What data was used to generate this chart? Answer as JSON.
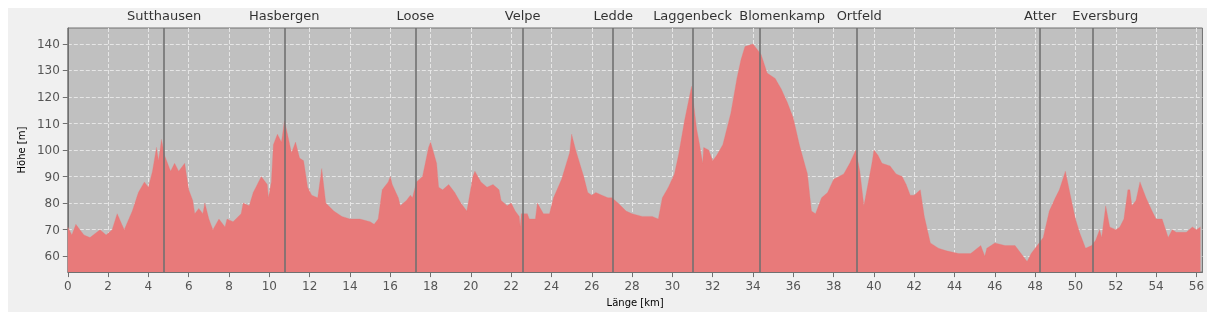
{
  "chart_data": {
    "type": "area",
    "xlabel": "Länge [km]",
    "ylabel": "Höhe [m]",
    "x": [
      0,
      0.2,
      0.4,
      0.6,
      0.8,
      1.1,
      1.6,
      1.9,
      2.2,
      2.45,
      2.8,
      3.2,
      3.5,
      3.8,
      4.0,
      4.2,
      4.4,
      4.5,
      4.65,
      4.8,
      5.1,
      5.3,
      5.5,
      5.8,
      6.0,
      6.2,
      6.3,
      6.5,
      6.7,
      6.8,
      7.0,
      7.2,
      7.5,
      7.8,
      7.9,
      8.2,
      8.6,
      8.7,
      9.0,
      9.2,
      9.6,
      9.9,
      9.95,
      10.1,
      10.2,
      10.4,
      10.6,
      10.75,
      10.9,
      11.1,
      11.3,
      11.5,
      11.7,
      11.9,
      12.1,
      12.4,
      12.6,
      12.8,
      13.2,
      13.6,
      14.0,
      14.5,
      15.0,
      15.2,
      15.4,
      15.6,
      15.9,
      16.0,
      16.1,
      16.4,
      16.5,
      16.8,
      17.0,
      17.1,
      17.3,
      17.6,
      17.9,
      18.0,
      18.3,
      18.4,
      18.6,
      18.9,
      19.2,
      19.5,
      19.8,
      20.1,
      20.2,
      20.5,
      20.8,
      21.1,
      21.4,
      21.5,
      21.8,
      22.0,
      22.2,
      22.4,
      22.45,
      22.5,
      22.8,
      22.9,
      23.2,
      23.3,
      23.6,
      23.9,
      24.1,
      24.5,
      24.9,
      25.0,
      25.2,
      25.6,
      25.8,
      26.0,
      26.2,
      26.5,
      26.8,
      27.0,
      27.3,
      27.7,
      28.0,
      28.5,
      29.0,
      29.3,
      29.5,
      29.8,
      30.1,
      30.3,
      30.6,
      30.95,
      31.2,
      31.35,
      31.5,
      31.55,
      31.8,
      32.0,
      32.2,
      32.5,
      32.9,
      33.2,
      33.4,
      33.6,
      34.0,
      34.4,
      34.7,
      35.1,
      35.4,
      35.7,
      36.0,
      36.3,
      36.7,
      36.9,
      37.1,
      37.4,
      37.7,
      38.0,
      38.5,
      38.8,
      39.1,
      39.3,
      39.5,
      39.9,
      40.0,
      40.2,
      40.4,
      40.8,
      41.1,
      41.4,
      41.6,
      41.8,
      42.0,
      42.3,
      42.5,
      42.8,
      43.2,
      43.6,
      44.2,
      44.8,
      45.3,
      45.5,
      45.6,
      46.0,
      46.5,
      47.0,
      47.3,
      47.6,
      47.8,
      48.1,
      48.4,
      48.7,
      49.0,
      49.2,
      49.5,
      49.8,
      50.0,
      50.2,
      50.5,
      50.8,
      51.0,
      51.2,
      51.3,
      51.5,
      51.7,
      52.0,
      52.2,
      52.4,
      52.6,
      52.7,
      52.8,
      53.0,
      53.2,
      53.5,
      53.8,
      54.0,
      54.3,
      54.6,
      54.8,
      55.0,
      55.5,
      55.8,
      56.0,
      56.2
    ],
    "series": [
      {
        "color": "#e87a7a",
        "values": [
          71,
          68,
          72,
          70,
          68,
          67,
          70,
          68,
          70,
          76,
          70,
          77,
          84,
          88,
          86,
          92,
          101,
          96,
          104,
          98,
          92,
          95,
          92,
          95,
          85,
          81,
          76,
          78,
          76,
          80,
          74,
          70,
          74,
          71,
          74,
          73,
          76,
          80,
          79,
          84,
          90,
          87,
          82,
          88,
          102,
          106,
          103,
          111,
          106,
          99,
          103,
          97,
          96,
          86,
          83,
          82,
          93,
          80,
          77,
          75,
          74,
          74,
          73,
          72,
          74,
          85,
          88,
          90,
          87,
          82,
          79,
          81,
          83,
          82,
          88,
          90,
          101,
          103,
          95,
          86,
          85,
          87,
          84,
          80,
          77,
          90,
          92,
          88,
          86,
          87,
          85,
          81,
          79,
          80,
          77,
          75,
          71,
          76,
          76,
          74,
          74,
          80,
          76,
          76,
          82,
          89,
          99,
          106,
          100,
          90,
          84,
          83,
          84,
          83,
          82,
          82,
          80,
          77,
          76,
          75,
          75,
          74,
          82,
          86,
          91,
          98,
          111,
          124,
          108,
          102,
          95,
          101,
          100,
          96,
          98,
          102,
          114,
          127,
          134,
          139,
          140,
          136,
          129,
          127,
          123,
          118,
          112,
          102,
          91,
          77,
          76,
          82,
          84,
          89,
          91,
          95,
          100,
          92,
          79,
          95,
          100,
          98,
          95,
          94,
          91,
          90,
          87,
          83,
          83,
          85,
          75,
          65,
          63,
          62,
          61,
          61,
          64,
          60,
          63,
          65,
          64,
          64,
          61,
          58,
          61,
          64,
          67,
          77,
          82,
          85,
          92,
          81,
          74,
          69,
          63,
          64,
          66,
          70,
          67,
          79,
          71,
          70,
          71,
          74,
          85,
          85,
          79,
          81,
          88,
          82,
          77,
          74,
          74,
          67,
          70,
          69,
          69,
          71,
          70,
          71
        ]
      }
    ],
    "xlim": [
      0,
      56.3
    ],
    "ylim": [
      54,
      146
    ],
    "xticks": [
      0,
      2,
      4,
      6,
      8,
      10,
      12,
      14,
      16,
      18,
      20,
      22,
      24,
      26,
      28,
      30,
      32,
      34,
      36,
      38,
      40,
      42,
      44,
      46,
      48,
      50,
      52,
      54,
      56
    ],
    "yticks": [
      60,
      70,
      80,
      90,
      100,
      110,
      120,
      130,
      140
    ],
    "ref_lines": [
      {
        "axis": "x",
        "value": 4.78,
        "label": "Sutthausen",
        "color": "#707070"
      },
      {
        "axis": "x",
        "value": 10.74,
        "label": "Hasbergen",
        "color": "#707070"
      },
      {
        "axis": "x",
        "value": 17.25,
        "label": "Loose",
        "color": "#707070"
      },
      {
        "axis": "x",
        "value": 22.57,
        "label": "Velpe",
        "color": "#707070"
      },
      {
        "axis": "x",
        "value": 27.06,
        "label": "Ledde",
        "color": "#707070"
      },
      {
        "axis": "x",
        "value": 31.0,
        "label": "Laggenbeck",
        "color": "#707070"
      },
      {
        "axis": "x",
        "value": 34.35,
        "label": "Blomenkamp",
        "color": "#707070"
      },
      {
        "axis": "x",
        "value": 39.13,
        "label": "Ortfeld",
        "color": "#707070"
      },
      {
        "axis": "x",
        "value": 48.25,
        "label": "Atter",
        "color": "#707070"
      },
      {
        "axis": "x",
        "value": 50.86,
        "label": "Eversburg",
        "color": "#707070"
      }
    ],
    "grid": true,
    "marker": "none"
  }
}
